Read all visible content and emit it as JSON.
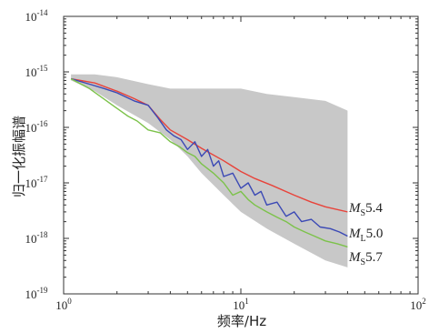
{
  "chart_data": {
    "type": "line",
    "xlabel": "频率/Hz",
    "ylabel": "归一化振幅谱",
    "x_scale": "log",
    "y_scale": "log",
    "xlim": [
      1,
      100
    ],
    "ylim": [
      1e-19,
      1e-14
    ],
    "x_ticks": [
      {
        "value": 1,
        "base": "10",
        "exp": "0"
      },
      {
        "value": 10,
        "base": "10",
        "exp": "1"
      },
      {
        "value": 100,
        "base": "10",
        "exp": "2"
      }
    ],
    "y_ticks": [
      {
        "value": 1e-14,
        "base": "10",
        "exp": "-14"
      },
      {
        "value": 1e-15,
        "base": "10",
        "exp": "-15"
      },
      {
        "value": 1e-16,
        "base": "10",
        "exp": "-16"
      },
      {
        "value": 1e-17,
        "base": "10",
        "exp": "-17"
      },
      {
        "value": 1e-18,
        "base": "10",
        "exp": "-18"
      },
      {
        "value": 1e-19,
        "base": "10",
        "exp": "-19"
      }
    ],
    "background_band": {
      "color": "#c8c8c8",
      "x": [
        1.1,
        1.5,
        2,
        3,
        4,
        5,
        6,
        8,
        10,
        14,
        20,
        30,
        40
      ],
      "upper": [
        9e-16,
        9e-16,
        8e-16,
        6e-16,
        5e-16,
        5e-16,
        5e-16,
        5e-16,
        5e-16,
        4e-16,
        3.5e-16,
        3e-16,
        2e-16
      ],
      "lower": [
        7e-16,
        4.5e-16,
        2.5e-16,
        1.2e-16,
        6e-17,
        3e-17,
        1.5e-17,
        6e-18,
        3e-18,
        1.5e-18,
        8e-19,
        4e-19,
        3e-19
      ]
    },
    "series": [
      {
        "color": "#e8433a",
        "label_mag": "M",
        "label_sub": "S",
        "label_val": "5.4",
        "x": [
          1.1,
          1.5,
          2,
          2.5,
          3,
          3.5,
          4,
          5,
          6,
          8,
          10,
          12,
          15,
          20,
          25,
          30,
          40
        ],
        "y": [
          7.5e-16,
          6.3e-16,
          4.5e-16,
          3.3e-16,
          2.5e-16,
          1.4e-16,
          9e-17,
          6e-17,
          4.2e-17,
          2.5e-17,
          1.6e-17,
          1.2e-17,
          9e-18,
          6e-18,
          4.5e-18,
          3.7e-18,
          3e-18
        ]
      },
      {
        "color": "#3b49b5",
        "label_mag": "M",
        "label_sub": "L",
        "label_val": "5.0",
        "x": [
          1.1,
          1.4,
          1.7,
          2,
          2.5,
          3,
          3.4,
          3.8,
          4.2,
          4.6,
          5,
          5.5,
          6,
          6.5,
          7,
          7.5,
          8,
          9,
          10,
          11,
          12,
          13,
          14,
          16,
          18,
          20,
          22,
          25,
          28,
          32,
          36,
          40
        ],
        "y": [
          7.5e-16,
          6e-16,
          5e-16,
          4.2e-16,
          3e-16,
          2.5e-16,
          1.5e-16,
          9e-17,
          7e-17,
          6e-17,
          4e-17,
          5.5e-17,
          3e-17,
          4e-17,
          2e-17,
          2.5e-17,
          1.3e-17,
          1.5e-17,
          8e-18,
          1e-17,
          6e-18,
          7e-18,
          4e-18,
          4.5e-18,
          2.5e-18,
          3e-18,
          2e-18,
          2.2e-18,
          1.6e-18,
          1.5e-18,
          1.3e-18,
          1.1e-18
        ]
      },
      {
        "color": "#7cc24a",
        "label_mag": "M",
        "label_sub": "S",
        "label_val": "5.7",
        "x": [
          1.1,
          1.4,
          1.7,
          2,
          2.3,
          2.6,
          3,
          3.5,
          4,
          4.5,
          5,
          5.5,
          6,
          7,
          8,
          9,
          10,
          11,
          12,
          14,
          16,
          18,
          20,
          23,
          26,
          30,
          35,
          40
        ],
        "y": [
          7.5e-16,
          5e-16,
          3.2e-16,
          2.2e-16,
          1.6e-16,
          1.3e-16,
          9e-17,
          8e-17,
          5.5e-17,
          4.5e-17,
          3.5e-17,
          3e-17,
          2.2e-17,
          1.5e-17,
          1e-17,
          6e-18,
          7e-18,
          5e-18,
          4e-18,
          3e-18,
          2.4e-18,
          2e-18,
          1.6e-18,
          1.3e-18,
          1.1e-18,
          9e-19,
          8e-19,
          7e-19
        ]
      }
    ]
  }
}
